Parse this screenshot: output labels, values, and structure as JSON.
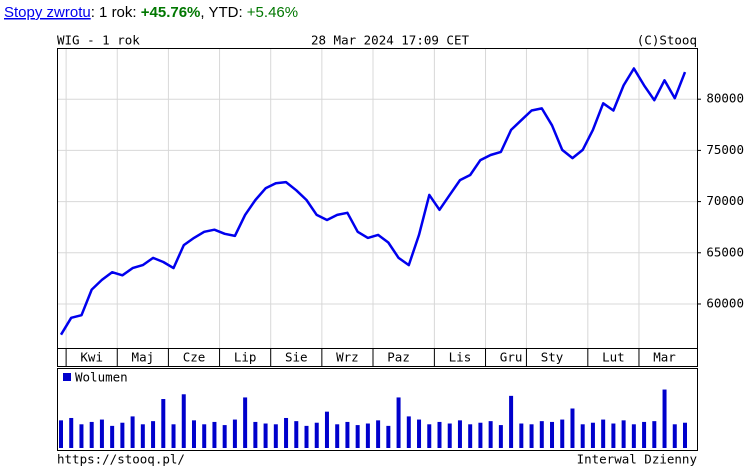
{
  "header": {
    "link": "Stopy zwrotu",
    "sep1": ": 1 rok: ",
    "ret_1y": "+45.76%",
    "sep2": ", YTD: ",
    "ret_ytd": "+5.46%"
  },
  "chart_data": [
    {
      "type": "line",
      "title": "WIG - 1 rok",
      "subtitle": "28 Mar 2024 17:09 CET",
      "source": "(C)Stooq",
      "color": "#0000ee",
      "grid": true,
      "categories": [
        null,
        null,
        null,
        "Kwi",
        null,
        null,
        null,
        null,
        "Maj",
        null,
        null,
        null,
        null,
        "Cze",
        null,
        null,
        null,
        null,
        "Lip",
        null,
        null,
        null,
        null,
        "Sie",
        null,
        null,
        null,
        null,
        "Wrz",
        null,
        null,
        null,
        null,
        "Paz",
        null,
        null,
        null,
        null,
        null,
        "Lis",
        null,
        null,
        null,
        null,
        "Gru",
        null,
        null,
        null,
        "Sty",
        null,
        null,
        null,
        null,
        null,
        "Lut",
        null,
        null,
        null,
        null,
        "Mar",
        null,
        null
      ],
      "values": [
        57000,
        58650,
        58900,
        61400,
        62350,
        63100,
        62800,
        63500,
        63800,
        64500,
        64100,
        63500,
        65750,
        66450,
        67050,
        67250,
        66850,
        66650,
        68700,
        70150,
        71300,
        71800,
        71900,
        71100,
        70150,
        68700,
        68200,
        68700,
        68900,
        67050,
        66450,
        66750,
        66000,
        64500,
        63800,
        66750,
        70650,
        69200,
        70650,
        72100,
        72600,
        74050,
        74550,
        74850,
        77000,
        77950,
        78900,
        79100,
        77450,
        75050,
        74250,
        75050,
        77000,
        79600,
        78900,
        81350,
        83000,
        81350,
        79900,
        81850,
        80100,
        82650
      ],
      "ylim": [
        55700,
        85000
      ],
      "yticks": [
        60000,
        65000,
        70000,
        75000,
        80000
      ]
    },
    {
      "type": "bar",
      "color": "#0000cc",
      "ylim": [
        0,
        100
      ],
      "series": [
        {
          "name": "Wolumen",
          "color": "#0000cc",
          "values": [
            35,
            38,
            30,
            33,
            36,
            28,
            32,
            40,
            30,
            34,
            62,
            30,
            68,
            35,
            30,
            33,
            29,
            36,
            64,
            33,
            31,
            30,
            38,
            34,
            28,
            32,
            46,
            30,
            33,
            29,
            31,
            35,
            28,
            64,
            40,
            36,
            30,
            33,
            31,
            35,
            30,
            32,
            34,
            29,
            66,
            31,
            30,
            34,
            33,
            36,
            50,
            30,
            32,
            36,
            31,
            35,
            30,
            33,
            34,
            74,
            30,
            32
          ]
        }
      ]
    }
  ],
  "footer": {
    "url": "https://stooq.pl/",
    "interval": "Interwal Dzienny"
  }
}
